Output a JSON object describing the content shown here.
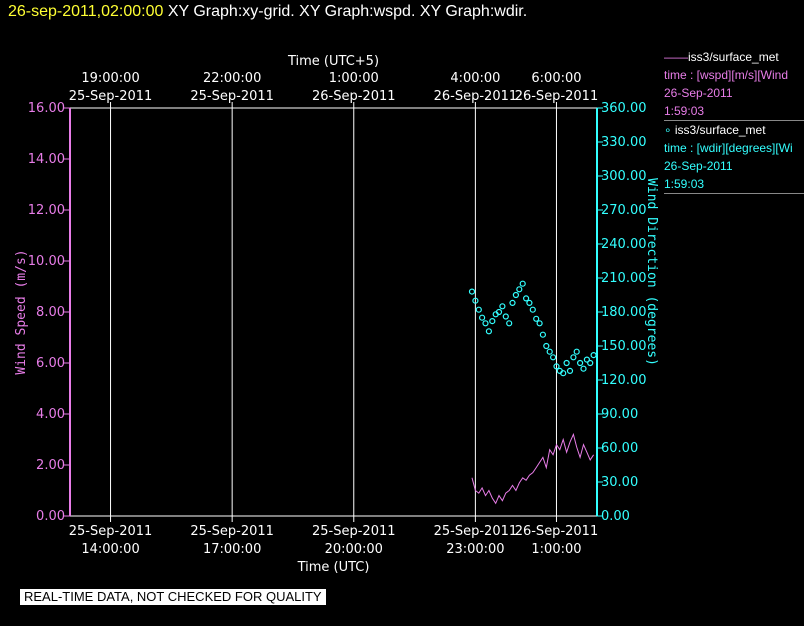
{
  "header": {
    "timestamp": "26-sep-2011,02:00:00",
    "graphs": [
      "XY Graph:xy-grid.",
      "XY Graph:wspd.",
      "XY Graph:wdir."
    ]
  },
  "legend": [
    {
      "marker": "——",
      "name": "iss3/surface_met",
      "desc": "time : [wspd][m/s][Wind",
      "date": "26-Sep-2011",
      "time": "1:59:03",
      "color": "#e87de8"
    },
    {
      "marker": "∘",
      "name": "iss3/surface_met",
      "desc": "time : [wdir][degrees][Wi",
      "date": "26-Sep-2011",
      "time": "1:59:03",
      "color": "#33ffff"
    }
  ],
  "banner": "REAL-TIME DATA, NOT CHECKED FOR QUALITY",
  "chart_data": {
    "type": "line",
    "background": "#000000",
    "grid": "vertical",
    "xlabel_bottom": "Time (UTC)",
    "xlabel_top": "Time (UTC+5)",
    "xlim": [
      "2011-09-25 13:00",
      "2011-09-26 02:00"
    ],
    "x_ticks_bottom": [
      {
        "t": "2011-09-25 14:00",
        "date": "25-Sep-2011",
        "time": "14:00:00"
      },
      {
        "t": "2011-09-25 17:00",
        "date": "25-Sep-2011",
        "time": "17:00:00"
      },
      {
        "t": "2011-09-25 20:00",
        "date": "25-Sep-2011",
        "time": "20:00:00"
      },
      {
        "t": "2011-09-25 23:00",
        "date": "25-Sep-2011",
        "time": "23:00:00"
      },
      {
        "t": "2011-09-26 01:00",
        "date": "26-Sep-2011",
        "time": "1:00:00"
      }
    ],
    "x_ticks_top": [
      {
        "t": "2011-09-25 14:00",
        "time": "19:00:00",
        "date": "25-Sep-2011"
      },
      {
        "t": "2011-09-25 17:00",
        "time": "22:00:00",
        "date": "25-Sep-2011"
      },
      {
        "t": "2011-09-25 20:00",
        "time": "1:00:00",
        "date": "26-Sep-2011"
      },
      {
        "t": "2011-09-25 23:00",
        "time": "4:00:00",
        "date": "26-Sep-2011"
      },
      {
        "t": "2011-09-26 01:00",
        "time": "6:00:00",
        "date": "26-Sep-2011"
      }
    ],
    "y_left": {
      "label": "Wind Speed (m/s)",
      "ylim": [
        0,
        16
      ],
      "ticks": [
        "0.00",
        "2.00",
        "4.00",
        "6.00",
        "8.00",
        "10.00",
        "12.00",
        "14.00",
        "16.00"
      ],
      "color": "#e87de8"
    },
    "y_right": {
      "label": "Wind Direction (degrees)",
      "ylim": [
        0,
        360
      ],
      "ticks": [
        "0.00",
        "30.00",
        "60.00",
        "90.00",
        "120.00",
        "150.00",
        "180.00",
        "210.00",
        "240.00",
        "270.00",
        "300.00",
        "330.00",
        "360.00"
      ],
      "color": "#33ffff"
    },
    "series": [
      {
        "name": "iss3/surface_met time : [wspd][m/s]",
        "style": "line",
        "axis": "left",
        "color": "#e87de8",
        "x": [
          "2011-09-25 22:55",
          "2011-09-25 23:00",
          "2011-09-25 23:05",
          "2011-09-25 23:10",
          "2011-09-25 23:15",
          "2011-09-25 23:20",
          "2011-09-25 23:25",
          "2011-09-25 23:30",
          "2011-09-25 23:35",
          "2011-09-25 23:40",
          "2011-09-25 23:45",
          "2011-09-25 23:50",
          "2011-09-25 23:55",
          "2011-09-26 00:00",
          "2011-09-26 00:05",
          "2011-09-26 00:10",
          "2011-09-26 00:15",
          "2011-09-26 00:20",
          "2011-09-26 00:25",
          "2011-09-26 00:30",
          "2011-09-26 00:35",
          "2011-09-26 00:40",
          "2011-09-26 00:45",
          "2011-09-26 00:50",
          "2011-09-26 00:55",
          "2011-09-26 01:00",
          "2011-09-26 01:05",
          "2011-09-26 01:10",
          "2011-09-26 01:15",
          "2011-09-26 01:20",
          "2011-09-26 01:25",
          "2011-09-26 01:30",
          "2011-09-26 01:35",
          "2011-09-26 01:40",
          "2011-09-26 01:45",
          "2011-09-26 01:50",
          "2011-09-26 01:55"
        ],
        "values": [
          1.5,
          1.0,
          0.9,
          1.1,
          0.8,
          1.0,
          0.7,
          0.5,
          0.8,
          0.6,
          0.9,
          1.0,
          1.2,
          1.0,
          1.3,
          1.5,
          1.4,
          1.6,
          1.7,
          1.9,
          2.1,
          2.3,
          1.9,
          2.6,
          2.4,
          2.8,
          2.6,
          3.0,
          2.5,
          2.9,
          3.2,
          2.7,
          2.3,
          2.8,
          2.5,
          2.2,
          2.4
        ]
      },
      {
        "name": "iss3/surface_met time : [wdir][degrees]",
        "style": "scatter",
        "axis": "right",
        "color": "#33ffff",
        "x": [
          "2011-09-25 22:55",
          "2011-09-25 23:00",
          "2011-09-25 23:05",
          "2011-09-25 23:10",
          "2011-09-25 23:15",
          "2011-09-25 23:20",
          "2011-09-25 23:25",
          "2011-09-25 23:30",
          "2011-09-25 23:35",
          "2011-09-25 23:40",
          "2011-09-25 23:45",
          "2011-09-25 23:50",
          "2011-09-25 23:55",
          "2011-09-26 00:00",
          "2011-09-26 00:05",
          "2011-09-26 00:10",
          "2011-09-26 00:15",
          "2011-09-26 00:20",
          "2011-09-26 00:25",
          "2011-09-26 00:30",
          "2011-09-26 00:35",
          "2011-09-26 00:40",
          "2011-09-26 00:45",
          "2011-09-26 00:50",
          "2011-09-26 00:55",
          "2011-09-26 01:00",
          "2011-09-26 01:05",
          "2011-09-26 01:10",
          "2011-09-26 01:15",
          "2011-09-26 01:20",
          "2011-09-26 01:25",
          "2011-09-26 01:30",
          "2011-09-26 01:35",
          "2011-09-26 01:40",
          "2011-09-26 01:45",
          "2011-09-26 01:50",
          "2011-09-26 01:55"
        ],
        "values": [
          198,
          190,
          182,
          175,
          170,
          163,
          172,
          178,
          180,
          185,
          176,
          170,
          188,
          195,
          200,
          205,
          192,
          188,
          182,
          174,
          170,
          160,
          150,
          145,
          140,
          132,
          128,
          126,
          135,
          128,
          140,
          145,
          135,
          130,
          138,
          135,
          142
        ]
      }
    ]
  }
}
